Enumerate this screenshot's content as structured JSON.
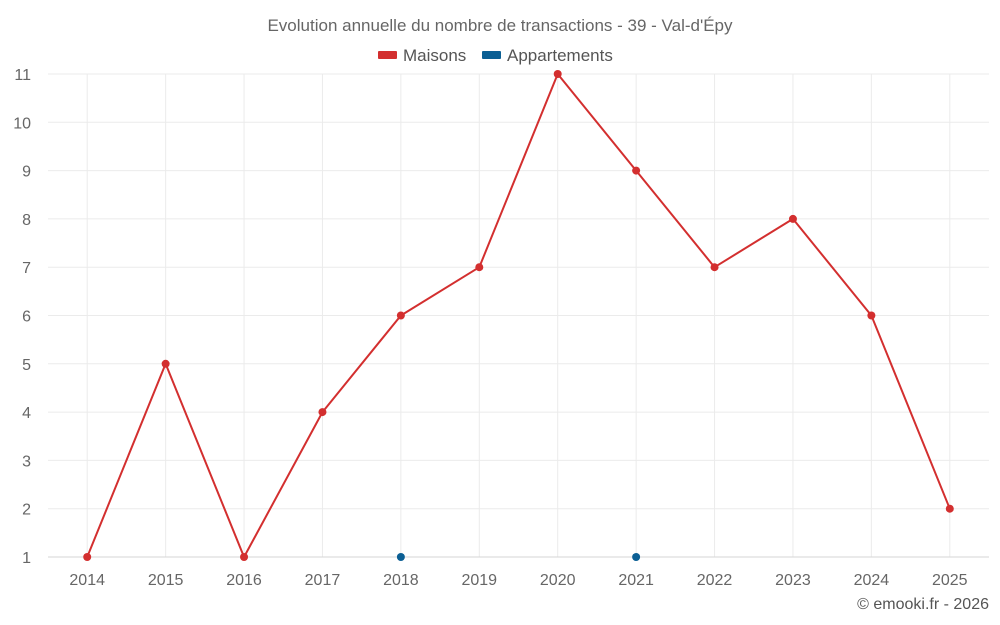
{
  "chart_data": {
    "type": "line",
    "title": "Evolution annuelle du nombre de transactions - 39 - Val-d'Épy",
    "x": [
      2014,
      2015,
      2016,
      2017,
      2018,
      2019,
      2020,
      2021,
      2022,
      2023,
      2024,
      2025
    ],
    "x_tick_labels": [
      "2014",
      "2015",
      "2016",
      "2017",
      "2018",
      "2019",
      "2020",
      "2021",
      "2022",
      "2023",
      "2024",
      "2025"
    ],
    "y_tick_labels": [
      "1",
      "2",
      "3",
      "4",
      "5",
      "6",
      "7",
      "8",
      "9",
      "10",
      "11"
    ],
    "ylim": [
      1,
      11
    ],
    "grid": true,
    "legend_position": "top-center",
    "series": [
      {
        "name": "Maisons",
        "color": "#d32f2f",
        "values": [
          1,
          5,
          1,
          4,
          6,
          7,
          11,
          9,
          7,
          8,
          6,
          2
        ]
      },
      {
        "name": "Appartements",
        "color": "#0b5f94",
        "values": [
          null,
          null,
          null,
          null,
          1,
          null,
          null,
          1,
          null,
          null,
          null,
          null
        ]
      }
    ],
    "credit": "© emooki.fr - 2026"
  }
}
